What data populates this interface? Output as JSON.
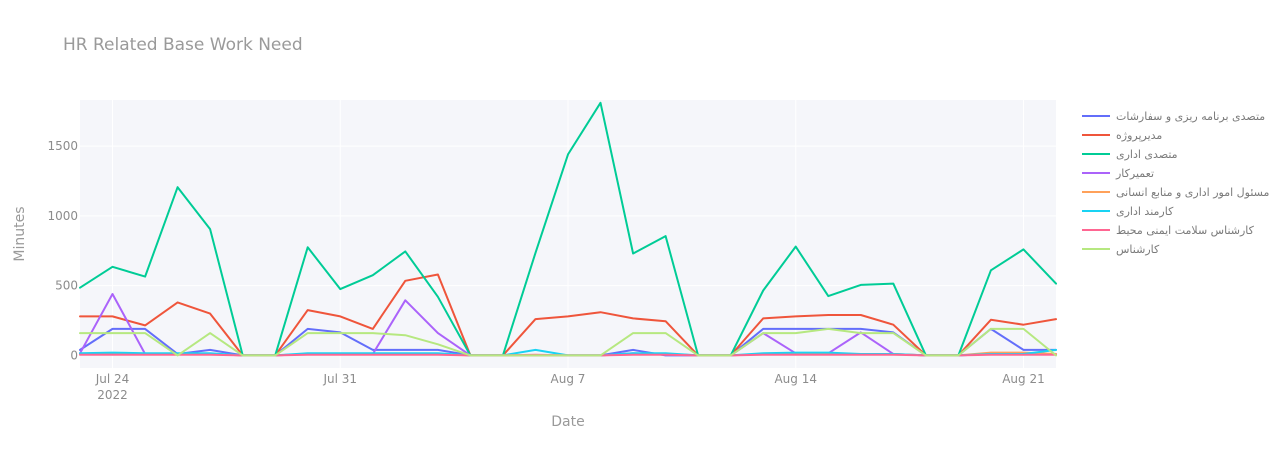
{
  "chart_data": {
    "type": "line",
    "title": "HR Related Base Work Need",
    "xlabel": "Date",
    "ylabel": "Minutes",
    "ylim": [
      -90,
      1830
    ],
    "xlim": [
      "2022-07-23",
      "2022-08-22"
    ],
    "yticks": [
      0,
      500,
      1000,
      1500
    ],
    "xticks": [
      {
        "date": "2022-07-24",
        "label": "Jul 24",
        "sublabel": "2022"
      },
      {
        "date": "2022-07-31",
        "label": "Jul 31",
        "sublabel": ""
      },
      {
        "date": "2022-08-07",
        "label": "Aug 7",
        "sublabel": ""
      },
      {
        "date": "2022-08-14",
        "label": "Aug 14",
        "sublabel": ""
      },
      {
        "date": "2022-08-21",
        "label": "Aug 21",
        "sublabel": ""
      }
    ],
    "legend_position": "top-right",
    "grid": true,
    "plot_background": "#f5f6fa",
    "dates": [
      "2022-07-23",
      "2022-07-24",
      "2022-07-25",
      "2022-07-26",
      "2022-07-27",
      "2022-07-28",
      "2022-07-29",
      "2022-07-30",
      "2022-07-31",
      "2022-08-01",
      "2022-08-02",
      "2022-08-03",
      "2022-08-04",
      "2022-08-05",
      "2022-08-06",
      "2022-08-07",
      "2022-08-08",
      "2022-08-09",
      "2022-08-10",
      "2022-08-11",
      "2022-08-12",
      "2022-08-13",
      "2022-08-14",
      "2022-08-15",
      "2022-08-16",
      "2022-08-17",
      "2022-08-18",
      "2022-08-19",
      "2022-08-20",
      "2022-08-21",
      "2022-08-22"
    ],
    "series": [
      {
        "name": "متصدی برنامه ریزی و سفارشات",
        "color": "#636efa",
        "values": [
          40,
          190,
          190,
          10,
          40,
          0,
          0,
          190,
          165,
          40,
          40,
          40,
          0,
          0,
          0,
          0,
          0,
          40,
          0,
          0,
          0,
          190,
          190,
          190,
          190,
          165,
          0,
          0,
          190,
          40,
          40
        ]
      },
      {
        "name": "مدیرپروژه",
        "color": "#ef553b",
        "values": [
          280,
          280,
          215,
          380,
          300,
          0,
          0,
          325,
          280,
          190,
          535,
          580,
          0,
          0,
          260,
          280,
          310,
          265,
          245,
          0,
          0,
          265,
          280,
          290,
          290,
          220,
          0,
          0,
          255,
          220,
          260
        ]
      },
      {
        "name": "متصدی اداری",
        "color": "#00cc96",
        "values": [
          485,
          635,
          565,
          1205,
          905,
          0,
          0,
          775,
          475,
          575,
          745,
          420,
          0,
          0,
          735,
          1440,
          1810,
          730,
          855,
          0,
          0,
          465,
          780,
          425,
          505,
          515,
          0,
          0,
          610,
          760,
          515
        ]
      },
      {
        "name": "تعمیرکار",
        "color": "#ab63fa",
        "values": [
          15,
          440,
          10,
          10,
          10,
          0,
          0,
          10,
          10,
          10,
          395,
          160,
          0,
          0,
          0,
          0,
          0,
          15,
          10,
          0,
          0,
          160,
          15,
          15,
          165,
          10,
          0,
          0,
          10,
          10,
          10
        ]
      },
      {
        "name": "مسئول امور اداری و منابع انسانی",
        "color": "#ffa15a",
        "values": [
          10,
          10,
          10,
          10,
          10,
          0,
          0,
          10,
          10,
          10,
          10,
          10,
          0,
          0,
          0,
          0,
          0,
          10,
          10,
          0,
          0,
          10,
          10,
          10,
          10,
          10,
          0,
          0,
          20,
          20,
          10
        ]
      },
      {
        "name": "کارمند اداری",
        "color": "#19d3f3",
        "values": [
          15,
          20,
          15,
          15,
          15,
          0,
          0,
          15,
          15,
          15,
          15,
          15,
          0,
          0,
          40,
          0,
          0,
          15,
          15,
          0,
          0,
          15,
          20,
          20,
          10,
          10,
          0,
          0,
          10,
          10,
          40
        ]
      },
      {
        "name": "کارشناس سلامت ایمنی محیط",
        "color": "#ff6692",
        "values": [
          5,
          5,
          5,
          5,
          5,
          0,
          0,
          5,
          5,
          5,
          5,
          5,
          0,
          0,
          5,
          0,
          0,
          5,
          5,
          0,
          0,
          5,
          5,
          5,
          5,
          5,
          0,
          0,
          5,
          5,
          5
        ]
      },
      {
        "name": "کارشناس",
        "color": "#b6e880",
        "values": [
          160,
          160,
          160,
          0,
          160,
          0,
          0,
          160,
          160,
          160,
          145,
          80,
          0,
          0,
          0,
          0,
          0,
          160,
          160,
          0,
          0,
          160,
          160,
          190,
          160,
          160,
          0,
          0,
          190,
          190,
          0
        ]
      }
    ]
  }
}
